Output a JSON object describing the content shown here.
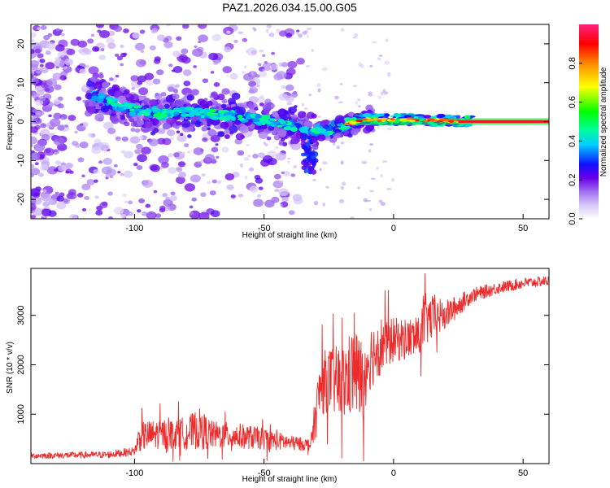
{
  "title": "PAZ1.2026.034.15.00.G05",
  "colors": {
    "snr_line": "#ee2a2a",
    "axis": "#000000",
    "background": "#ffffff"
  },
  "chart_data": [
    {
      "type": "heatmap",
      "name": "spectrogram",
      "xlabel": "Height of straight line (km)",
      "ylabel": "Frequency (Hz)",
      "xlim": [
        -140,
        60
      ],
      "ylim": [
        -25,
        25
      ],
      "xticks": [
        -100,
        -50,
        0,
        50
      ],
      "yticks": [
        -20,
        -10,
        0,
        10,
        20
      ],
      "xtick_labels": [
        "-100",
        "-50",
        "0",
        "50"
      ],
      "ytick_labels": [
        "-20",
        "-10",
        "0",
        "10",
        "20"
      ],
      "ridge": {
        "x": [
          -115,
          -100,
          -90,
          -80,
          -70,
          -60,
          -50,
          -45,
          -40,
          -35,
          -30,
          -25,
          -20,
          -15,
          -10,
          0,
          10,
          20,
          30,
          60
        ],
        "freq": [
          6,
          3,
          2,
          2.5,
          2,
          1.5,
          0.5,
          -0.5,
          -1,
          -2,
          -2.5,
          -2,
          -1,
          0,
          0.5,
          0.5,
          0.5,
          0.3,
          0,
          0
        ]
      },
      "colorbar": {
        "label": "Normalized spectral amplitude",
        "range": [
          0,
          1
        ],
        "ticks": [
          0.0,
          0.2,
          0.4,
          0.6,
          0.8
        ],
        "tick_labels": [
          "0.0",
          "0.2",
          "0.4",
          "0.6",
          "0.8"
        ]
      }
    },
    {
      "type": "line",
      "name": "snr",
      "xlabel": "Height of straight line (km)",
      "ylabel": "SNR (10 * v/v)",
      "xlim": [
        -140,
        60
      ],
      "ylim": [
        0,
        3950
      ],
      "xticks": [
        -100,
        -50,
        0,
        50
      ],
      "yticks": [
        1000,
        2000,
        3000
      ],
      "xtick_labels": [
        "-100",
        "-50",
        "0",
        "50"
      ],
      "ytick_labels": [
        "1000",
        "2000",
        "3000"
      ],
      "envelope": {
        "x": [
          -140,
          -110,
          -100,
          -98,
          -90,
          -80,
          -75,
          -70,
          -60,
          -50,
          -40,
          -32,
          -30,
          -28,
          -25,
          -20,
          -15,
          -12,
          -10,
          -5,
          0,
          10,
          12,
          20,
          30,
          40,
          50,
          60
        ],
        "mean": [
          160,
          180,
          250,
          550,
          600,
          620,
          700,
          580,
          560,
          500,
          420,
          380,
          1000,
          1600,
          1700,
          1600,
          1900,
          1600,
          2100,
          2400,
          2500,
          2550,
          2900,
          3000,
          3400,
          3550,
          3650,
          3700
        ],
        "amp": [
          60,
          70,
          90,
          300,
          300,
          320,
          420,
          280,
          260,
          220,
          150,
          120,
          500,
          650,
          650,
          800,
          900,
          900,
          700,
          600,
          450,
          400,
          550,
          300,
          150,
          120,
          110,
          100
        ]
      }
    }
  ]
}
